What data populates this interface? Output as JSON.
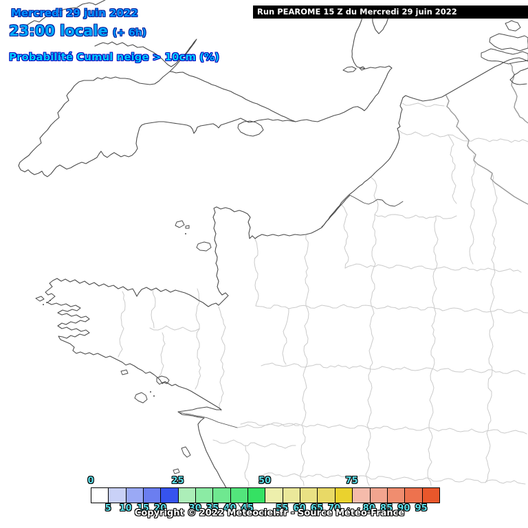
{
  "header": {
    "date": "Mercredi 29 juin 2022",
    "time": "23:00 locale",
    "offset": "(+ 6h)",
    "variable": "Probabilité Cumul neige > 10cm (%)"
  },
  "run_banner": {
    "text": "Run PEAROME 15 Z du Mercredi 29 juin 2022"
  },
  "legend": {
    "values": [
      0,
      5,
      10,
      15,
      20,
      25,
      30,
      35,
      40,
      45,
      50,
      55,
      60,
      65,
      70,
      75,
      80,
      85,
      90,
      95
    ],
    "colors": [
      "#ffffff",
      "#c9d1f7",
      "#9aa9f5",
      "#6b7ef0",
      "#3653ee",
      "#aceeb8",
      "#8beba4",
      "#6fe890",
      "#53e57c",
      "#35e163",
      "#edefac",
      "#eae89a",
      "#e9e184",
      "#e8d966",
      "#ead22e",
      "#f5bbab",
      "#f2a58f",
      "#f08d6f",
      "#ed724e",
      "#e9572b"
    ],
    "top_label_values": [
      0,
      25,
      50,
      75
    ]
  },
  "footer": {
    "copyright": "Copyright © 2022 Meteociel.fr - Source Météo-France"
  },
  "colors": {
    "title_blue": "#0091ff",
    "time_blue": "#00aaff",
    "variable_cyan": "#00ccff",
    "outline_navy": "#001b99",
    "legend_label_cyan": "#5adce6",
    "coastline": "#4a4a4a",
    "department_border": "#cacaca",
    "country_border": "#9a9a9a"
  }
}
